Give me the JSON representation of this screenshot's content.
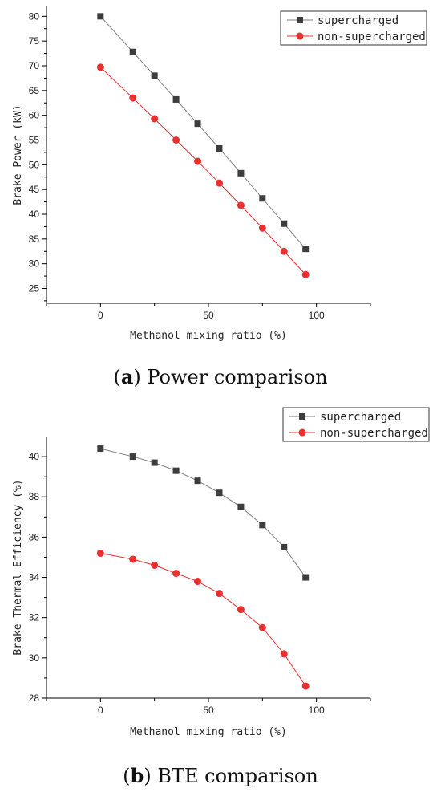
{
  "chart_data": [
    {
      "type": "line",
      "caption_letter": "a",
      "caption_text": "Power comparison",
      "xlabel": "Methanol mixing ratio (%)",
      "ylabel": "Brake Power (kW)",
      "xlim": [
        -25,
        125
      ],
      "ylim": [
        22,
        82
      ],
      "xticks": [
        0,
        50,
        100
      ],
      "yticks": [
        25,
        30,
        35,
        40,
        45,
        50,
        55,
        60,
        65,
        70,
        75,
        80
      ],
      "x": [
        0,
        15,
        25,
        35,
        45,
        55,
        65,
        75,
        85,
        95
      ],
      "legend_position": "top-right",
      "grid": false,
      "series": [
        {
          "name": "supercharged",
          "marker": "square",
          "color": "#3d3d3d",
          "line_color": "#7f7f7f",
          "values": [
            80.0,
            72.8,
            68.0,
            63.2,
            58.3,
            53.3,
            48.3,
            43.2,
            38.1,
            33.0
          ]
        },
        {
          "name": "non-supercharged",
          "marker": "circle",
          "color": "#e83030",
          "line_color": "#e83030",
          "values": [
            69.7,
            63.5,
            59.3,
            55.0,
            50.7,
            46.3,
            41.8,
            37.2,
            32.5,
            27.8
          ]
        }
      ]
    },
    {
      "type": "line",
      "caption_letter": "b",
      "caption_text": "BTE comparison",
      "xlabel": "Methanol mixing ratio (%)",
      "ylabel": "Brake Thermal Efficiency (%)",
      "xlim": [
        -25,
        125
      ],
      "ylim": [
        28,
        41
      ],
      "xticks": [
        0,
        50,
        100
      ],
      "yticks": [
        28,
        30,
        32,
        34,
        36,
        38,
        40
      ],
      "x": [
        0,
        15,
        25,
        35,
        45,
        55,
        65,
        75,
        85,
        95
      ],
      "legend_position": "top-right",
      "grid": false,
      "series": [
        {
          "name": "supercharged",
          "marker": "square",
          "color": "#3d3d3d",
          "line_color": "#7f7f7f",
          "values": [
            40.4,
            40.0,
            39.7,
            39.3,
            38.8,
            38.2,
            37.5,
            36.6,
            35.5,
            34.0
          ]
        },
        {
          "name": "non-supercharged",
          "marker": "circle",
          "color": "#e83030",
          "line_color": "#e83030",
          "values": [
            35.2,
            34.9,
            34.6,
            34.2,
            33.8,
            33.2,
            32.4,
            31.5,
            30.2,
            28.6
          ]
        }
      ]
    }
  ]
}
